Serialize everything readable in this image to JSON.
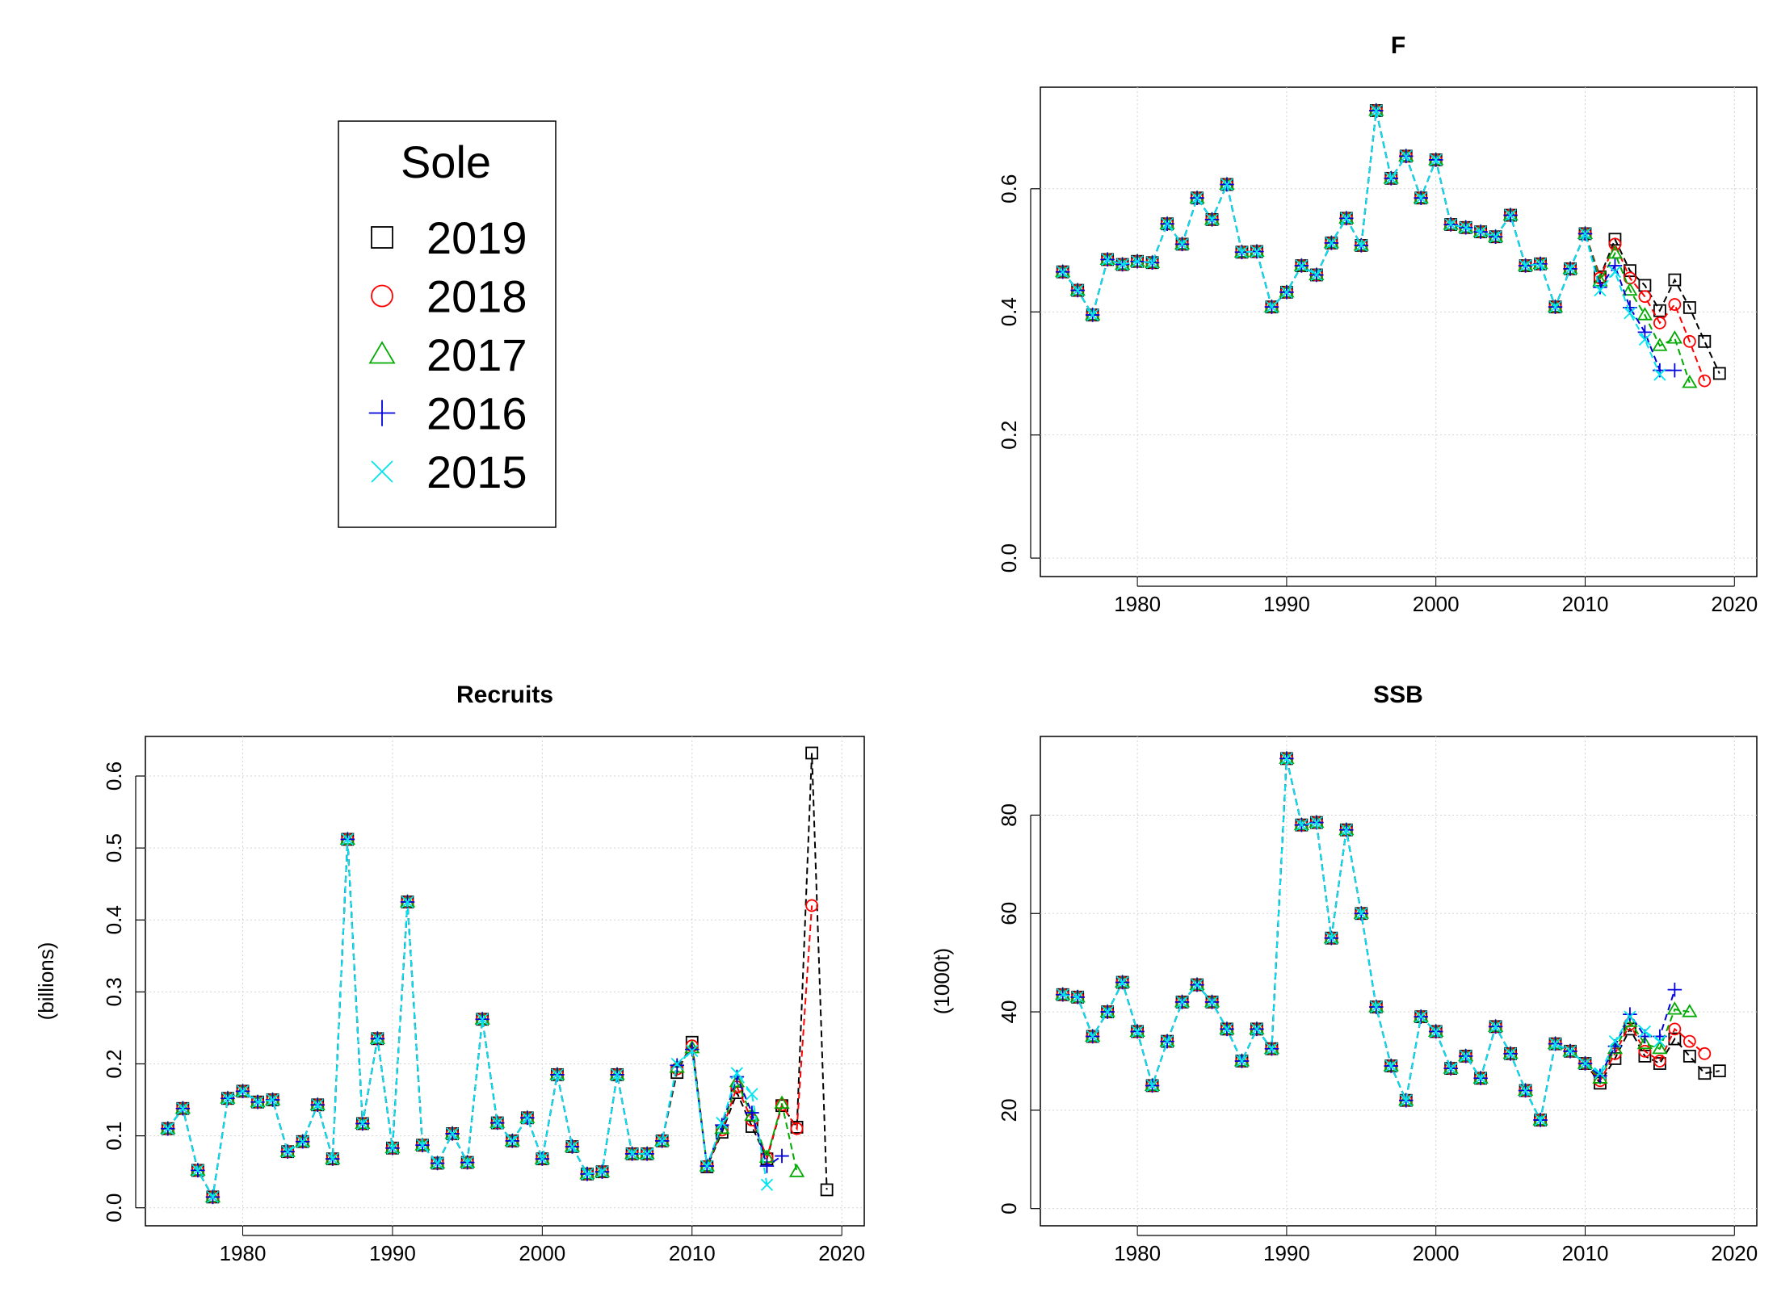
{
  "legend": {
    "title": "Sole",
    "entries": [
      {
        "label": "2019",
        "color": "#000000",
        "symbol": "square"
      },
      {
        "label": "2018",
        "color": "#ff0000",
        "symbol": "circle"
      },
      {
        "label": "2017",
        "color": "#00aa00",
        "symbol": "triangle"
      },
      {
        "label": "2016",
        "color": "#0000dd",
        "symbol": "plus"
      },
      {
        "label": "2015",
        "color": "#00e5ee",
        "symbol": "cross"
      }
    ]
  },
  "chart_data": [
    {
      "id": "f",
      "type": "line",
      "title": "F",
      "xlabel": "",
      "ylabel": "",
      "xlim": [
        1973.5,
        2021.5
      ],
      "ylim": [
        -0.03,
        0.765
      ],
      "xticks": [
        1980,
        1990,
        2000,
        2010,
        2020
      ],
      "yticks": [
        0.0,
        0.2,
        0.4,
        0.6
      ],
      "ytick_labels": [
        "0.0",
        "0.2",
        "0.4",
        "0.6"
      ],
      "grid": true,
      "x_start": 1975,
      "common": [
        0.465,
        0.435,
        0.395,
        0.485,
        0.477,
        0.482,
        0.48,
        0.543,
        0.51,
        0.585,
        0.55,
        0.607,
        0.497,
        0.498,
        0.408,
        0.432,
        0.475,
        0.46,
        0.512,
        0.552,
        0.508,
        0.727,
        0.617,
        0.653,
        0.585,
        0.647,
        0.542,
        0.537,
        0.53,
        0.522,
        0.557,
        0.475,
        0.478,
        0.408,
        0.47,
        0.527
      ],
      "series": [
        {
          "name": "2019",
          "tail": [
            0.457,
            0.518,
            0.467,
            0.443,
            0.402,
            0.452,
            0.407,
            0.352,
            0.3
          ]
        },
        {
          "name": "2018",
          "tail": [
            0.455,
            0.51,
            0.455,
            0.425,
            0.382,
            0.412,
            0.352,
            0.288
          ]
        },
        {
          "name": "2017",
          "tail": [
            0.45,
            0.495,
            0.435,
            0.395,
            0.345,
            0.357,
            0.285
          ]
        },
        {
          "name": "2016",
          "tail": [
            0.44,
            0.475,
            0.407,
            0.367,
            0.305,
            0.305
          ]
        },
        {
          "name": "2015",
          "tail": [
            0.435,
            0.465,
            0.398,
            0.355,
            0.298
          ]
        }
      ]
    },
    {
      "id": "recruits",
      "type": "line",
      "title": "Recruits",
      "xlabel": "",
      "ylabel": "(billions)",
      "xlim": [
        1973.5,
        2021.5
      ],
      "ylim": [
        -0.025,
        0.655
      ],
      "xticks": [
        1980,
        1990,
        2000,
        2010,
        2020
      ],
      "yticks": [
        0.0,
        0.1,
        0.2,
        0.3,
        0.4,
        0.5,
        0.6
      ],
      "ytick_labels": [
        "0.0",
        "0.1",
        "0.2",
        "0.3",
        "0.4",
        "0.5",
        "0.6"
      ],
      "grid": true,
      "x_start": 1975,
      "common": [
        0.11,
        0.138,
        0.052,
        0.015,
        0.152,
        0.162,
        0.147,
        0.15,
        0.078,
        0.092,
        0.143,
        0.068,
        0.512,
        0.117,
        0.235,
        0.083,
        0.425,
        0.087,
        0.062,
        0.103,
        0.063,
        0.262,
        0.118,
        0.093,
        0.125,
        0.068,
        0.185,
        0.085,
        0.047,
        0.05,
        0.185,
        0.075,
        0.075,
        0.093
      ],
      "series": [
        {
          "name": "2019",
          "tail": [
            0.188,
            0.23,
            0.057,
            0.105,
            0.16,
            0.113,
            0.068,
            0.142,
            0.112,
            0.632,
            0.025
          ]
        },
        {
          "name": "2018",
          "tail": [
            0.193,
            0.225,
            0.058,
            0.108,
            0.168,
            0.122,
            0.07,
            0.143,
            0.11,
            0.42
          ]
        },
        {
          "name": "2017",
          "tail": [
            0.195,
            0.222,
            0.058,
            0.11,
            0.175,
            0.128,
            0.07,
            0.145,
            0.05
          ]
        },
        {
          "name": "2016",
          "tail": [
            0.198,
            0.22,
            0.058,
            0.115,
            0.182,
            0.132,
            0.058,
            0.072
          ]
        },
        {
          "name": "2015",
          "tail": [
            0.2,
            0.218,
            0.058,
            0.118,
            0.187,
            0.158,
            0.032
          ]
        }
      ]
    },
    {
      "id": "ssb",
      "type": "line",
      "title": "SSB",
      "xlabel": "",
      "ylabel": "(1000t)",
      "xlim": [
        1973.5,
        2021.5
      ],
      "ylim": [
        -3.5,
        96
      ],
      "xticks": [
        1980,
        1990,
        2000,
        2010,
        2020
      ],
      "yticks": [
        0,
        20,
        40,
        60,
        80
      ],
      "ytick_labels": [
        "0",
        "20",
        "40",
        "60",
        "80"
      ],
      "grid": true,
      "x_start": 1975,
      "common": [
        43.5,
        43.0,
        35.0,
        40.0,
        46.0,
        36.0,
        25.0,
        34.0,
        42.0,
        45.5,
        42.0,
        36.5,
        30.0,
        36.5,
        32.5,
        91.5,
        78.0,
        78.5,
        55.0,
        77.0,
        60.0,
        41.0,
        29.0,
        22.0,
        39.0,
        36.0,
        28.5,
        31.0,
        26.5,
        37.0,
        31.5,
        24.0,
        18.0,
        33.5,
        32.0,
        29.5
      ],
      "series": [
        {
          "name": "2019",
          "tail": [
            25.5,
            30.5,
            36.5,
            31.0,
            29.5,
            34.5,
            31.0,
            27.5,
            28.0
          ]
        },
        {
          "name": "2018",
          "tail": [
            26.0,
            31.5,
            37.5,
            32.0,
            30.0,
            36.5,
            34.0,
            31.5
          ]
        },
        {
          "name": "2017",
          "tail": [
            26.5,
            32.5,
            38.0,
            33.5,
            32.5,
            40.5,
            40.0
          ]
        },
        {
          "name": "2016",
          "tail": [
            27.0,
            33.0,
            39.5,
            35.0,
            35.0,
            44.5
          ]
        },
        {
          "name": "2015",
          "tail": [
            27.5,
            34.0,
            39.0,
            36.0,
            34.0
          ]
        }
      ]
    }
  ]
}
